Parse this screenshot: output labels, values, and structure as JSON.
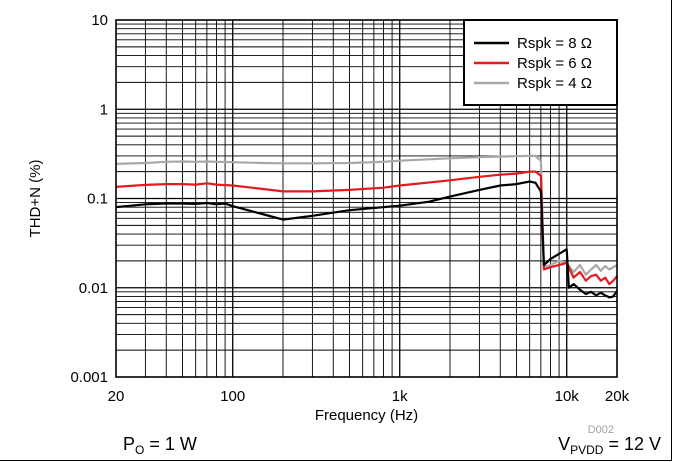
{
  "chart_data": {
    "type": "line",
    "xlabel": "Frequency (Hz)",
    "ylabel": "THD+N (%)",
    "x_scale": "log",
    "y_scale": "log",
    "xlim": [
      20,
      20000
    ],
    "ylim": [
      0.001,
      10
    ],
    "x_tick_labels": [
      "20",
      "100",
      "1k",
      "10k",
      "20k"
    ],
    "x_tick_values": [
      20,
      100,
      1000,
      10000,
      20000
    ],
    "y_tick_labels": [
      "0.001",
      "0.01",
      "0.1",
      "1",
      "10"
    ],
    "y_tick_values": [
      0.001,
      0.01,
      0.1,
      1,
      10
    ],
    "grid": true,
    "legend_position": "top-right",
    "series": [
      {
        "name": "Rspk = 8 Ω",
        "color": "#000000",
        "x": [
          20,
          30,
          40,
          50,
          60,
          70,
          80,
          90,
          100,
          120,
          150,
          200,
          300,
          500,
          800,
          1000,
          1500,
          2000,
          3000,
          4000,
          5000,
          6000,
          6500,
          7000,
          7300,
          8000,
          9000,
          10000,
          10300,
          11000,
          12000,
          13000,
          14000,
          15000,
          16000,
          17000,
          18000,
          19000,
          20000
        ],
        "y": [
          0.08,
          0.086,
          0.088,
          0.088,
          0.087,
          0.089,
          0.086,
          0.088,
          0.082,
          0.075,
          0.067,
          0.058,
          0.064,
          0.074,
          0.08,
          0.083,
          0.092,
          0.105,
          0.125,
          0.14,
          0.145,
          0.155,
          0.15,
          0.12,
          0.018,
          0.021,
          0.024,
          0.027,
          0.01,
          0.011,
          0.0095,
          0.0085,
          0.009,
          0.0082,
          0.0088,
          0.0082,
          0.0078,
          0.008,
          0.0092
        ]
      },
      {
        "name": "Rspk = 6 Ω",
        "color": "#e41a1c",
        "x": [
          20,
          30,
          40,
          50,
          60,
          70,
          80,
          100,
          150,
          200,
          300,
          500,
          800,
          1000,
          2000,
          3000,
          4000,
          5000,
          6000,
          6500,
          7000,
          7300,
          8000,
          9000,
          10000,
          11000,
          12000,
          13000,
          14000,
          15000,
          16000,
          17000,
          18000,
          19000,
          20000
        ],
        "y": [
          0.135,
          0.142,
          0.145,
          0.145,
          0.143,
          0.148,
          0.143,
          0.14,
          0.128,
          0.12,
          0.12,
          0.125,
          0.132,
          0.14,
          0.16,
          0.175,
          0.185,
          0.19,
          0.2,
          0.2,
          0.18,
          0.016,
          0.017,
          0.018,
          0.019,
          0.013,
          0.015,
          0.012,
          0.0135,
          0.014,
          0.012,
          0.013,
          0.011,
          0.012,
          0.0135
        ]
      },
      {
        "name": "Rspk = 4 Ω",
        "color": "#a8a8a8",
        "x": [
          20,
          30,
          40,
          50,
          60,
          70,
          80,
          100,
          150,
          200,
          300,
          500,
          800,
          1000,
          2000,
          3000,
          4000,
          5000,
          6000,
          6500,
          7000,
          7300,
          8000,
          9000,
          10000,
          11000,
          12000,
          13000,
          14000,
          15000,
          16000,
          17000,
          18000,
          19000,
          20000
        ],
        "y": [
          0.245,
          0.25,
          0.258,
          0.26,
          0.258,
          0.26,
          0.258,
          0.255,
          0.25,
          0.248,
          0.248,
          0.25,
          0.258,
          0.265,
          0.282,
          0.29,
          0.295,
          0.298,
          0.3,
          0.3,
          0.265,
          0.017,
          0.018,
          0.02,
          0.019,
          0.015,
          0.018,
          0.014,
          0.016,
          0.018,
          0.0155,
          0.0175,
          0.016,
          0.017,
          0.018
        ]
      }
    ]
  },
  "annotations": {
    "figure_code": "D002",
    "left_condition": {
      "main": "P",
      "sub": "O",
      "rest": " = 1 W"
    },
    "right_condition": {
      "main": "V",
      "sub": "PVDD",
      "rest": " = 12 V"
    }
  }
}
